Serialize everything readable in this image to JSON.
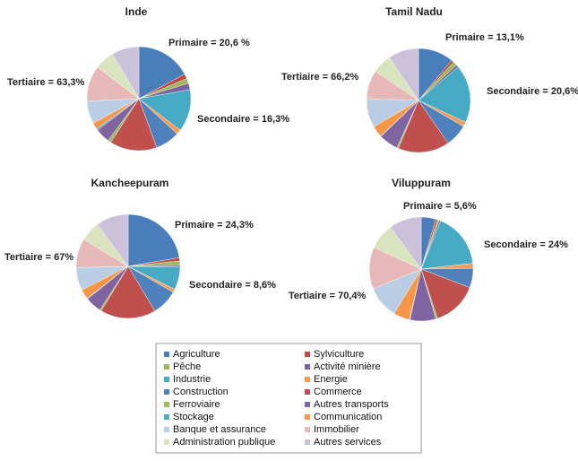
{
  "chart_data": [
    {
      "type": "pie",
      "title": "Inde",
      "categories": [
        "Agriculture",
        "Sylviculture",
        "Pêche",
        "Activité minière",
        "Industrie",
        "Energie",
        "Construction",
        "Commerce",
        "Ferroviaire",
        "Autres transports",
        "Stockage",
        "Communication",
        "Banque et assurance",
        "Immobilier",
        "Administration publique",
        "Autres services"
      ],
      "colors": [
        "#4a7ebb",
        "#be4b48",
        "#98b954",
        "#7d60a0",
        "#46aac5",
        "#f59d56",
        "#4f81bd",
        "#c0504d",
        "#9bbb59",
        "#8064a2",
        "#4bacc6",
        "#f79646",
        "#b9cde5",
        "#e6b9b8",
        "#d7e4bd",
        "#ccc1da"
      ],
      "values": [
        17,
        1.5,
        1.5,
        2,
        13,
        1.5,
        7.5,
        14.5,
        1,
        4.5,
        0.5,
        2,
        7,
        11,
        6,
        8.5
      ],
      "annotations": [
        "Primaire = 20,6 %",
        "Secondaire = 16,3%",
        "Tertiaire = 63,3%"
      ]
    },
    {
      "type": "pie",
      "title": "Tamil Nadu",
      "categories": [
        "Agriculture",
        "Sylviculture",
        "Pêche",
        "Activité minière",
        "Industrie",
        "Energie",
        "Construction",
        "Commerce",
        "Ferroviaire",
        "Autres transports",
        "Stockage",
        "Communication",
        "Banque et assurance",
        "Immobilier",
        "Administration publique",
        "Autres services"
      ],
      "colors": [
        "#4a7ebb",
        "#be4b48",
        "#98b954",
        "#7d60a0",
        "#46aac5",
        "#f59d56",
        "#4f81bd",
        "#c0504d",
        "#9bbb59",
        "#8064a2",
        "#4bacc6",
        "#f79646",
        "#b9cde5",
        "#e6b9b8",
        "#d7e4bd",
        "#ccc1da"
      ],
      "values": [
        11,
        0.8,
        1.3,
        0.8,
        18,
        1.5,
        7,
        16,
        0.5,
        6,
        0.2,
        3.5,
        9,
        9,
        6,
        9.5
      ],
      "annotations": [
        "Primaire = 13,1%",
        "Secondaire = 20,6%",
        "Tertiaire = 66,2%"
      ]
    },
    {
      "type": "pie",
      "title": "Kancheepuram",
      "categories": [
        "Agriculture",
        "Sylviculture",
        "Pêche",
        "Activité minière",
        "Industrie",
        "Energie",
        "Construction",
        "Commerce",
        "Ferroviaire",
        "Autres transports",
        "Stockage",
        "Communication",
        "Banque et assurance",
        "Immobilier",
        "Administration publique",
        "Autres services"
      ],
      "colors": [
        "#4a7ebb",
        "#be4b48",
        "#98b954",
        "#7d60a0",
        "#46aac5",
        "#f59d56",
        "#4f81bd",
        "#c0504d",
        "#9bbb59",
        "#8064a2",
        "#4bacc6",
        "#f79646",
        "#b9cde5",
        "#e6b9b8",
        "#d7e4bd",
        "#ccc1da"
      ],
      "values": [
        22,
        1,
        1.3,
        0.5,
        7,
        1,
        8,
        17,
        0.5,
        5,
        0.2,
        3,
        7,
        9,
        6,
        10
      ],
      "annotations": [
        "Primaire = 24,3%",
        "Secondaire = 8,6%",
        "Tertiaire = 67%"
      ]
    },
    {
      "type": "pie",
      "title": "Viluppuram",
      "categories": [
        "Agriculture",
        "Sylviculture",
        "Pêche",
        "Activité minière",
        "Industrie",
        "Energie",
        "Construction",
        "Commerce",
        "Ferroviaire",
        "Autres transports",
        "Stockage",
        "Communication",
        "Banque et assurance",
        "Immobilier",
        "Administration publique",
        "Autres services"
      ],
      "colors": [
        "#4a7ebb",
        "#be4b48",
        "#98b954",
        "#7d60a0",
        "#46aac5",
        "#f59d56",
        "#4f81bd",
        "#c0504d",
        "#9bbb59",
        "#8064a2",
        "#4bacc6",
        "#f79646",
        "#b9cde5",
        "#e6b9b8",
        "#d7e4bd",
        "#ccc1da"
      ],
      "values": [
        4.5,
        0.6,
        0.5,
        0.5,
        17,
        1.5,
        6,
        14,
        0.5,
        8,
        0.2,
        5,
        10,
        13,
        8,
        10
      ],
      "annotations": [
        "Primaire = 5,6%",
        "Secondaire = 24%",
        "Tertiaire = 70,4%"
      ]
    }
  ]
}
